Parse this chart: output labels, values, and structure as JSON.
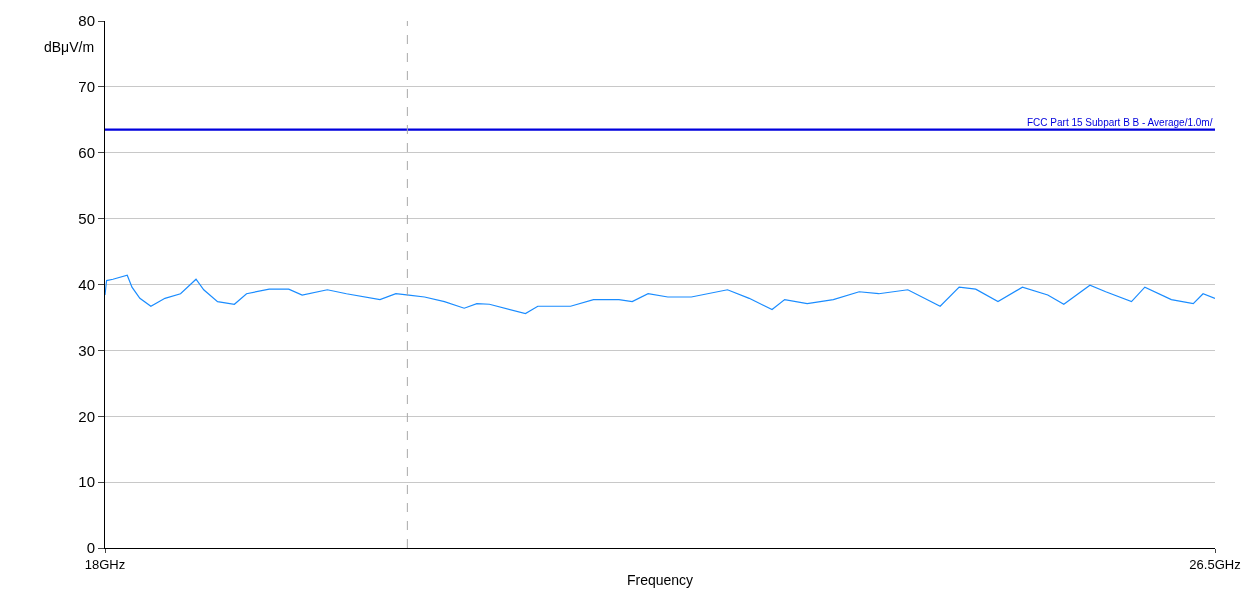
{
  "chart_data": {
    "type": "line",
    "xlabel": "Frequency",
    "ylabel": "dBμV/m",
    "log": "x",
    "x": [
      18.0,
      18.01,
      18.05,
      18.14,
      18.17,
      18.22,
      18.29,
      18.38,
      18.48,
      18.58,
      18.63,
      18.72,
      18.83,
      18.91,
      19.06,
      19.19,
      19.28,
      19.45,
      19.58,
      19.81,
      19.92,
      20.01,
      20.12,
      20.26,
      20.4,
      20.49,
      20.58,
      20.84,
      20.93,
      21.17,
      21.34,
      21.53,
      21.63,
      21.75,
      21.9,
      22.08,
      22.36,
      22.53,
      22.71,
      22.81,
      22.99,
      23.2,
      23.41,
      23.57,
      23.81,
      24.08,
      24.24,
      24.38,
      24.57,
      24.78,
      25.0,
      25.14,
      25.37,
      25.51,
      25.74,
      25.86,
      26.1,
      26.3,
      26.39,
      26.5
    ],
    "series": [
      {
        "color": "#1a8cff",
        "values": [
          38.4,
          40.6,
          40.8,
          41.4,
          39.6,
          37.9,
          36.7,
          37.9,
          38.6,
          40.8,
          39.2,
          37.4,
          37.0,
          38.6,
          39.3,
          39.3,
          38.4,
          39.2,
          38.6,
          37.7,
          38.6,
          38.4,
          38.1,
          37.4,
          36.4,
          37.1,
          37.0,
          35.6,
          36.7,
          36.7,
          37.7,
          37.7,
          37.4,
          38.6,
          38.1,
          38.1,
          39.2,
          37.9,
          36.2,
          37.7,
          37.1,
          37.7,
          38.9,
          38.6,
          39.2,
          36.7,
          39.6,
          39.3,
          37.4,
          39.6,
          38.4,
          37.0,
          39.9,
          38.9,
          37.4,
          39.6,
          37.7,
          37.1,
          38.6,
          37.9
        ]
      }
    ],
    "xlim": [
      18,
      26.5
    ],
    "xticks": [
      {
        "value": 18,
        "label": "18GHz"
      },
      {
        "value": 26.5,
        "label": "26.5GHz"
      }
    ],
    "ylim": [
      0,
      80
    ],
    "yticks": [
      0,
      10,
      20,
      30,
      40,
      50,
      60,
      70,
      80
    ],
    "grid": "y",
    "marker": "none",
    "line_style": "solid",
    "ref_lines": [
      {
        "axis": "y",
        "value": 63.5,
        "label": "FCC Part 15 Subpart B B - Average/1.0m/",
        "color": "#0000dd"
      },
      {
        "axis": "x",
        "value": 20,
        "color": "#aaaaaa",
        "line_style": "dashed"
      }
    ]
  }
}
